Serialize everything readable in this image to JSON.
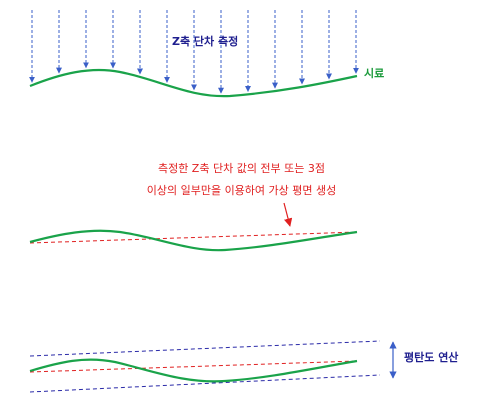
{
  "labels": {
    "measure_title": "Z축 단차 측정",
    "sample": "시료",
    "virtual_plane_line1": "측정한  Z축 단차 값의 전부 또는 3점",
    "virtual_plane_line2": "이상의 일부만을 이용하여 가상 평면 생성",
    "flatness": "평탄도 연산"
  },
  "colors": {
    "sample_curve": "#1aa34a",
    "measure_arrows": "#3a5fc8",
    "virtual_plane": "#e02020",
    "tolerance_lines": "#2a2aa8",
    "callout_arrow": "#e02020",
    "extent_arrow": "#3a5fc8"
  },
  "measure_arrow_count": 13
}
